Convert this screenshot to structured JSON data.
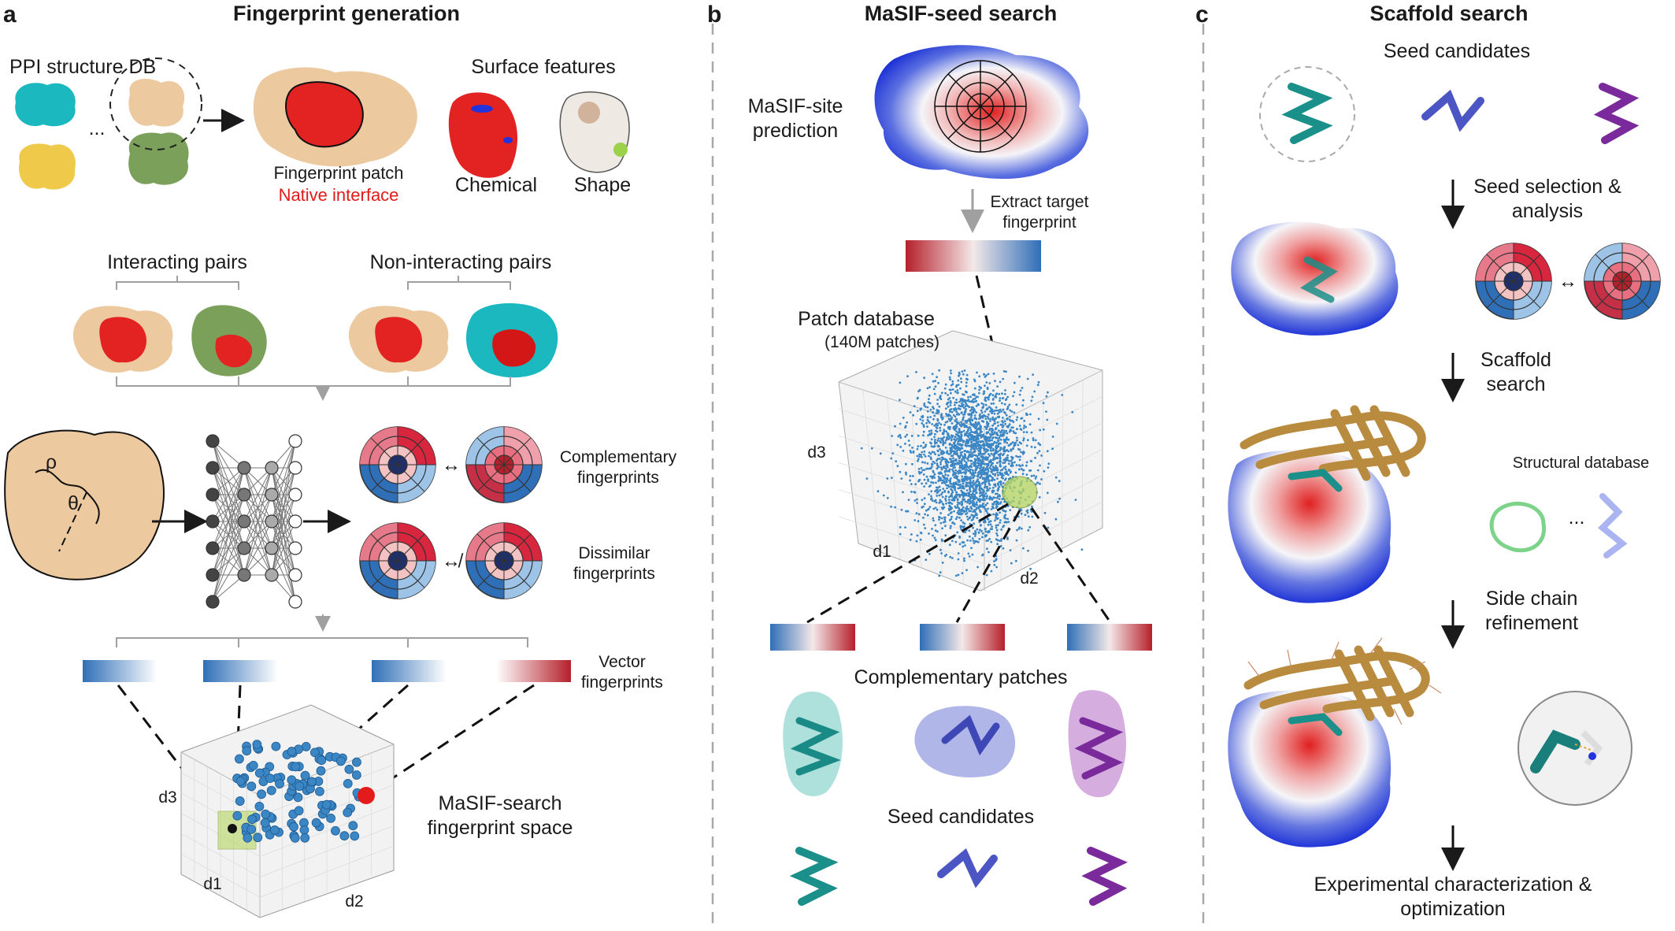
{
  "panels": {
    "a": {
      "letter": "a",
      "title": "Fingerprint generation",
      "ppi_db": "PPI structure DB",
      "ellipsis": "...",
      "fingerprint_patch": "Fingerprint patch",
      "native_interface": "Native interface",
      "surface_features": "Surface features",
      "chemical": "Chemical",
      "shape": "Shape",
      "interacting_pairs": "Interacting pairs",
      "non_interacting_pairs": "Non-interacting pairs",
      "rho": "ρ",
      "theta": "θ",
      "complementary_fp": "Complementary fingerprints",
      "dissimilar_fp": "Dissimilar fingerprints",
      "vector_fp": "Vector fingerprints",
      "fp_space": "MaSIF-search fingerprint space",
      "axis_d1": "d1",
      "axis_d2": "d2",
      "axis_d3": "d3"
    },
    "b": {
      "letter": "b",
      "title": "MaSIF-seed search",
      "masif_site": "MaSIF-site prediction",
      "extract": "Extract target fingerprint",
      "patch_db": "Patch database",
      "patch_count": "(140M patches)",
      "axis_d1": "d1",
      "axis_d2": "d2",
      "axis_d3": "d3",
      "complementary_patches": "Complementary patches",
      "seed_candidates": "Seed candidates"
    },
    "c": {
      "letter": "c",
      "title": "Scaffold search",
      "seed_candidates": "Seed candidates",
      "seed_selection": "Seed selection & analysis",
      "scaffold_search": "Scaffold search",
      "structural_db": "Structural database",
      "ellipsis": "...",
      "side_chain": "Side chain refinement",
      "experimental": "Experimental characterization & optimization"
    }
  },
  "colors": {
    "red": "#e01b1b",
    "blue": "#2f6fb7",
    "wheat": "#edc9a0",
    "teal": "#1aa3a3",
    "green": "#7aa05a",
    "gold": "#b98b3e"
  }
}
